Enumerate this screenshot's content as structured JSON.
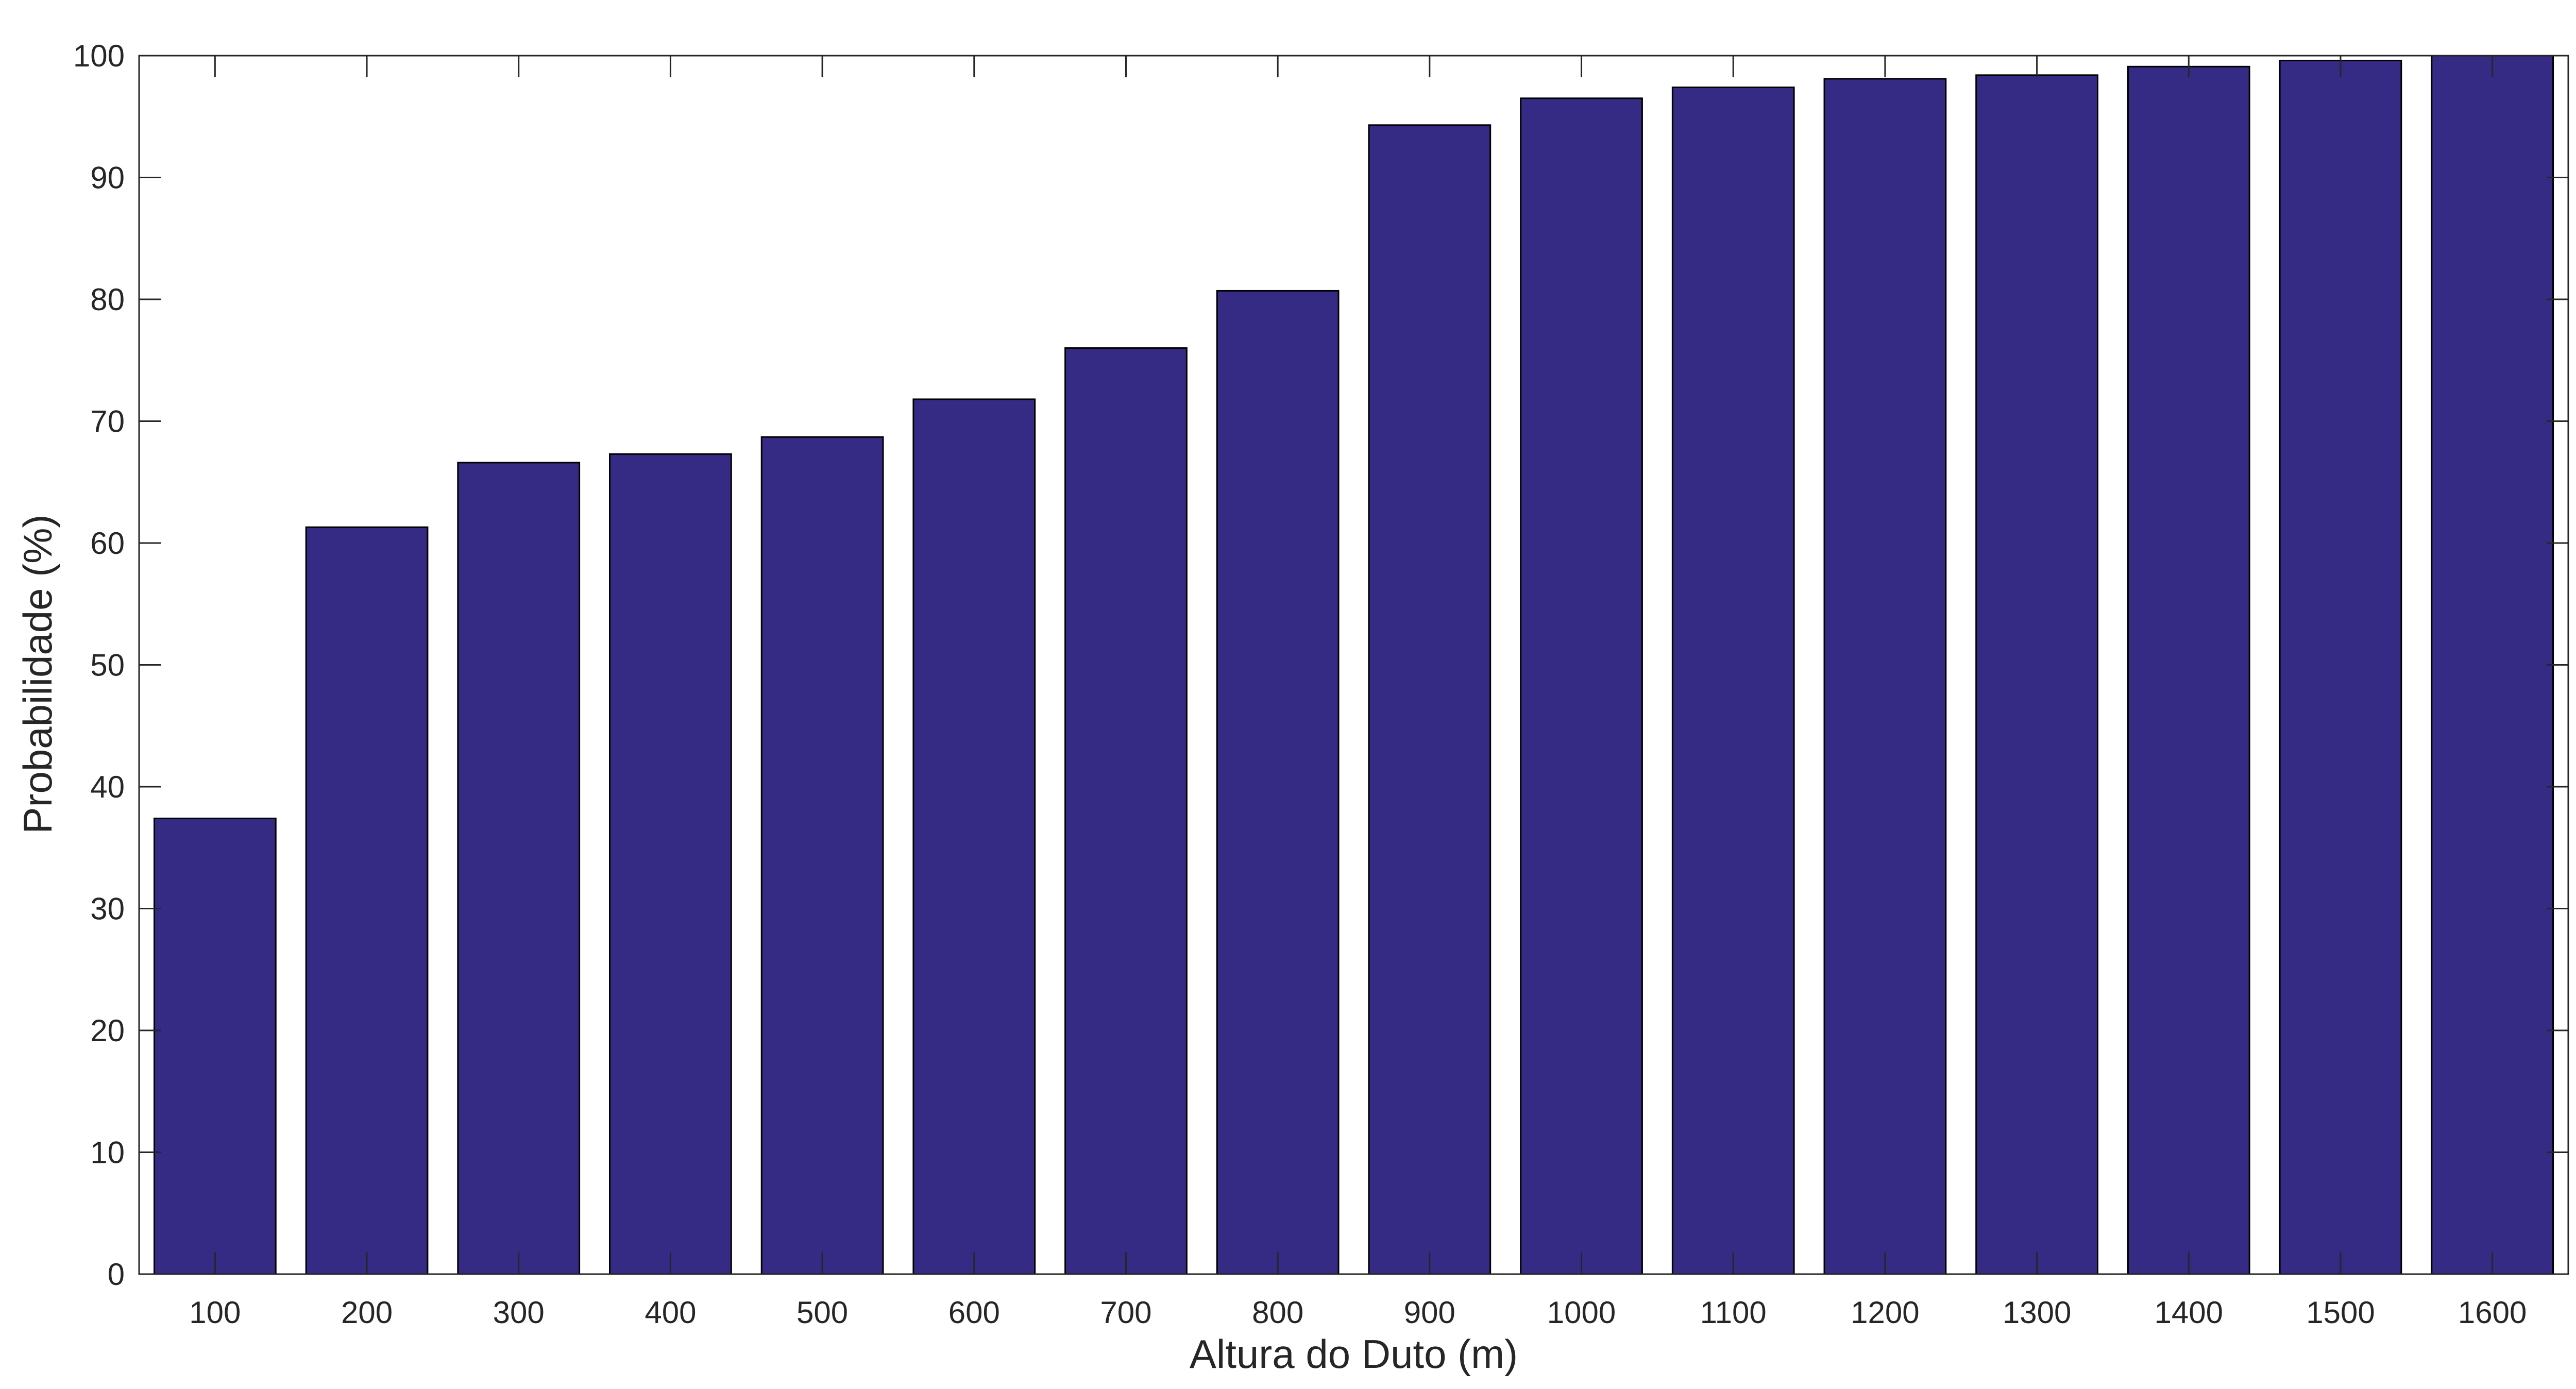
{
  "chart_data": {
    "type": "bar",
    "categories": [
      "100",
      "200",
      "300",
      "400",
      "500",
      "600",
      "700",
      "800",
      "900",
      "1000",
      "1100",
      "1200",
      "1300",
      "1400",
      "1500",
      "1600"
    ],
    "values": [
      37.4,
      61.3,
      66.6,
      67.3,
      68.7,
      71.8,
      76.0,
      80.7,
      94.3,
      96.5,
      97.4,
      98.1,
      98.4,
      99.1,
      99.6,
      100.0
    ],
    "title": "",
    "xlabel": "Altura do Duto (m)",
    "ylabel": "Probabilidade (%)",
    "ylim": [
      0,
      100
    ],
    "yticks": [
      "0",
      "10",
      "20",
      "30",
      "40",
      "50",
      "60",
      "70",
      "80",
      "90",
      "100"
    ],
    "grid": false,
    "legend": "none",
    "bar_color": "#352B84",
    "edge_color": "#000000"
  }
}
